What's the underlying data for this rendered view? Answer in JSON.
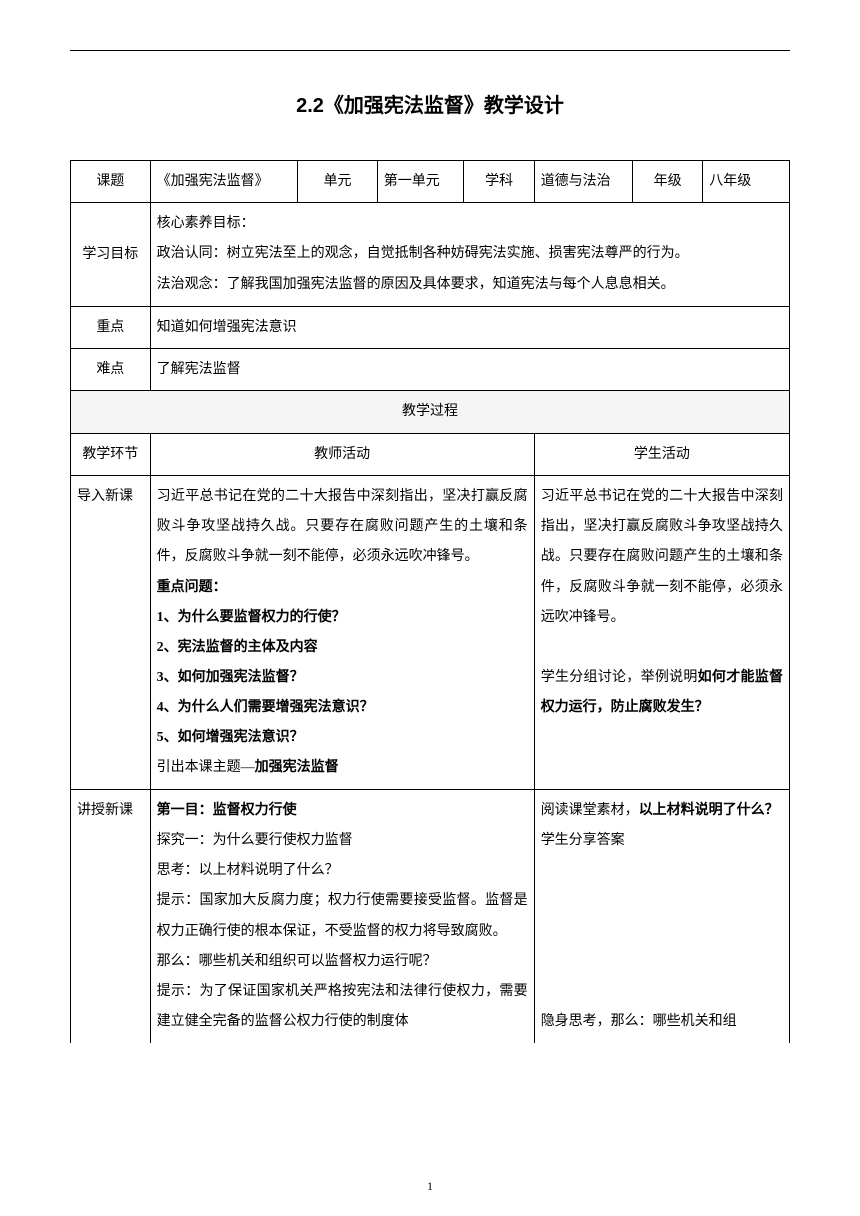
{
  "title": "2.2《加强宪法监督》教学设计",
  "title_fontsize": "20px",
  "body_fontsize": "14px",
  "page_number": "1",
  "colwidths": [
    "68px",
    "126px",
    "68px",
    "74px",
    "60px",
    "84px",
    "60px",
    "74px"
  ],
  "row1": {
    "c1": "课题",
    "c2": "《加强宪法监督》",
    "c3": "单元",
    "c4": "第一单元",
    "c5": "学科",
    "c6": "道德与法治",
    "c7": "年级",
    "c8": "八年级"
  },
  "row2": {
    "label": "学习目标",
    "line1": "核心素养目标：",
    "line2": "政治认同：树立宪法至上的观念，自觉抵制各种妨碍宪法实施、损害宪法尊严的行为。",
    "line3": "法治观念：了解我国加强宪法监督的原因及具体要求，知道宪法与每个人息息相关。"
  },
  "row3": {
    "label": "重点",
    "content": "知道如何增强宪法意识"
  },
  "row4": {
    "label": "难点",
    "content": "了解宪法监督"
  },
  "process_header": "教学过程",
  "process_cols": {
    "c1": "教学环节",
    "c2": "教师活动",
    "c3": "学生活动"
  },
  "intro": {
    "label": "导入新课",
    "teacher": [
      "习近平总书记在党的二十大报告中深刻指出，坚决打赢反腐败斗争攻坚战持久战。只要存在腐败问题产生的土壤和条件，反腐败斗争就一刻不能停，必须永远吹冲锋号。",
      "重点问题：",
      "1、为什么要监督权力的行使？",
      "2、宪法监督的主体及内容",
      "3、如何加强宪法监督？",
      "4、为什么人们需要增强宪法意识？",
      "5、如何增强宪法意识？",
      "引出本课主题—加强宪法监督"
    ],
    "teacher_bold_flags": [
      false,
      true,
      true,
      true,
      true,
      true,
      true,
      false
    ],
    "teacher_inline_bold_last": "加强宪法监督",
    "student": [
      "习近平总书记在党的二十大报告中深刻指出，坚决打赢反腐败斗争攻坚战持久战。只要存在腐败问题产生的土壤和条件，反腐败斗争就一刻不能停，必须永远吹冲锋号。",
      "",
      "学生分组讨论，举例说明如何才能监督权力运行，防止腐败发生？"
    ],
    "student_inline_bold": "如何才能监督权力运行，防止腐败发生？"
  },
  "teach": {
    "label": "讲授新课",
    "teacher": [
      "第一目：监督权力行使",
      "探究一：为什么要行使权力监督",
      "思考：以上材料说明了什么？",
      "提示：国家加大反腐力度；权力行使需要接受监督。监督是权力正确行使的根本保证，不受监督的权力将导致腐败。",
      "那么：哪些机关和组织可以监督权力运行呢？",
      "提示：为了保证国家机关严格按宪法和法律行使权力，需要建立健全完备的监督公权力行使的制度体"
    ],
    "teacher_bold_flags": [
      true,
      false,
      false,
      false,
      false,
      false
    ],
    "student": [
      "阅读课堂素材，以上材料说明了什么？",
      "学生分享答案",
      "",
      "",
      "",
      "",
      "隐身思考，那么：哪些机关和组"
    ],
    "student_inline_bold_first": "以上材料说明了什么？"
  }
}
